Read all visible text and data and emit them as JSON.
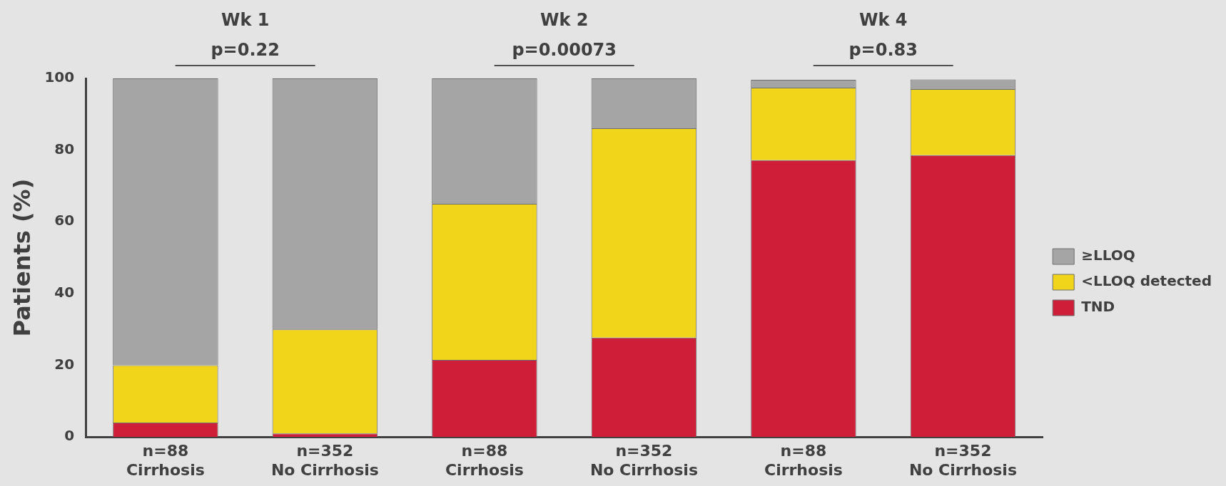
{
  "chart_data": {
    "type": "bar",
    "stacked": true,
    "ylabel": "Patients (%)",
    "categories": [
      "n=88\nCirrhosis",
      "n=352\nNo Cirrhosis",
      "n=88\nCirrhosis",
      "n=352\nNo Cirrhosis",
      "n=88\nCirrhosis",
      "n=352\nNo Cirrhosis"
    ],
    "series": [
      {
        "name": "TND",
        "color": "#cf1f38",
        "values": [
          4,
          1,
          21.5,
          27.7,
          77.2,
          78.6
        ]
      },
      {
        "name": "<LLOQ detected",
        "color": "#f1d51b",
        "values": [
          16,
          29,
          43.5,
          58.4,
          20.2,
          18.4
        ]
      },
      {
        "name": "≥LLOQ",
        "color": "#a5a5a5",
        "values": [
          80,
          70,
          35,
          13.9,
          2.2,
          2.7
        ]
      }
    ],
    "ylim": [
      0,
      100
    ],
    "yticks": [
      0,
      20,
      40,
      60,
      80,
      100
    ],
    "grid": false,
    "legend": "right",
    "annotations": [
      "Wk 1",
      "p=0.22",
      "Wk 2",
      "p=0.00073",
      "Wk 4",
      "p=0.83"
    ]
  }
}
